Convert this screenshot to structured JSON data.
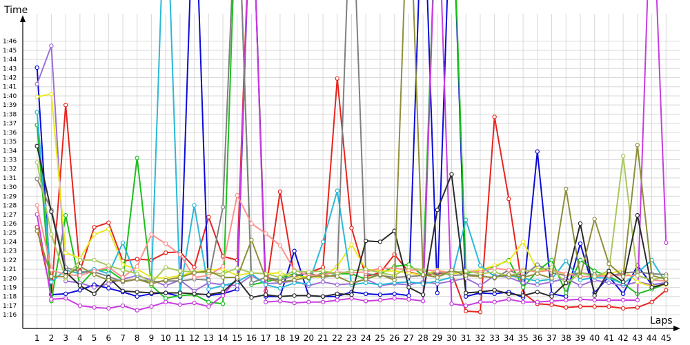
{
  "chart_data": {
    "type": "line",
    "ylabel": "Time",
    "xlabel": "Laps",
    "x": [
      1,
      2,
      3,
      4,
      5,
      6,
      7,
      8,
      9,
      10,
      11,
      12,
      13,
      14,
      15,
      16,
      17,
      18,
      19,
      20,
      21,
      22,
      23,
      24,
      25,
      26,
      27,
      28,
      29,
      30,
      31,
      32,
      33,
      34,
      35,
      36,
      37,
      38,
      39,
      40,
      41,
      42,
      43,
      44,
      45
    ],
    "xlim": [
      0,
      46
    ],
    "ylim": [
      74.5,
      109
    ],
    "ytick_values": [
      76,
      77,
      78,
      79,
      80,
      81,
      82,
      83,
      84,
      85,
      86,
      87,
      88,
      89,
      90,
      91,
      92,
      93,
      94,
      95,
      96,
      97,
      98,
      99,
      100,
      101,
      102,
      103,
      104,
      105,
      106
    ],
    "ytick_labels": [
      "1:16",
      "1:17",
      "1:18",
      "1:19",
      "1:20",
      "1:21",
      "1:22",
      "1:23",
      "1:24",
      "1:25",
      "1:26",
      "1:27",
      "1:28",
      "1:29",
      "1:30",
      "1:31",
      "1:32",
      "1:33",
      "1:34",
      "1:35",
      "1:36",
      "1:37",
      "1:38",
      "1:39",
      "1:40",
      "1:41",
      "1:42",
      "1:43",
      "1:44",
      "1:45",
      "1:46"
    ],
    "xtick_labels": [
      "1",
      "2",
      "3",
      "4",
      "5",
      "6",
      "7",
      "8",
      "9",
      "10",
      "11",
      "12",
      "13",
      "14",
      "15",
      "16",
      "17",
      "18",
      "19",
      "20",
      "21",
      "22",
      "23",
      "24",
      "25",
      "26",
      "27",
      "28",
      "29",
      "30",
      "31",
      "32",
      "33",
      "34",
      "35",
      "36",
      "37",
      "38",
      "39",
      "40",
      "41",
      "42",
      "43",
      "44",
      "45"
    ],
    "grid": true,
    "series": [
      {
        "color": "#e8231e",
        "values": [
          85.6,
          78.3,
          99.0,
          80.8,
          85.6,
          86.1,
          81.9,
          82.1,
          82.0,
          82.8,
          82.9,
          81.2,
          86.7,
          82.4,
          82.0,
          125,
          78.6,
          89.5,
          80.2,
          80.6,
          81.2,
          101.9,
          85.5,
          80.2,
          80.6,
          82.6,
          80.7,
          80.3,
          80.5,
          80.6,
          76.4,
          76.3,
          97.7,
          88.7,
          78.4,
          77.2,
          77.1,
          76.8,
          76.9,
          76.9,
          76.9,
          76.7,
          76.8,
          77.4,
          78.7
        ]
      },
      {
        "color": "#0a0ad8",
        "values": [
          103.1,
          78.2,
          78.3,
          78.7,
          79.3,
          78.9,
          78.5,
          78.0,
          78.3,
          78.4,
          78.0,
          125,
          78.1,
          78.3,
          78.8,
          125,
          78.0,
          78.0,
          83.0,
          78.1,
          78.0,
          78.0,
          78.5,
          78.3,
          78.2,
          78.3,
          78.1,
          125,
          78.4,
          125,
          78.0,
          78.4,
          78.3,
          78.5,
          77.9,
          93.9,
          78.3,
          78.0,
          83.8,
          78.4,
          80.2,
          78.3,
          81.4,
          79.3,
          79.5
        ]
      },
      {
        "color": "#1bbf1b",
        "values": [
          96.8,
          77.5,
          86.9,
          79.2,
          80.9,
          80.9,
          79.8,
          93.2,
          79.2,
          77.8,
          78.1,
          78.2,
          77.4,
          77.2,
          125,
          79.3,
          79.6,
          80.0,
          80.5,
          80.0,
          80.6,
          80.5,
          80.5,
          79.9,
          80.5,
          81.3,
          81.5,
          80.3,
          125,
          125,
          80.5,
          80.9,
          81.3,
          82.0,
          79.0,
          80.8,
          82.0,
          78.4,
          82.0,
          80.8,
          80.2,
          79.4,
          78.3,
          78.8,
          79.4
        ]
      },
      {
        "color": "#9b6fd6",
        "values": [
          101.3,
          105.5,
          79.7,
          79.5,
          79.0,
          79.4,
          79.9,
          80.3,
          79.8,
          79.2,
          79.8,
          78.6,
          79.5,
          79.3,
          79.2,
          80.3,
          79.4,
          79.5,
          79.7,
          79.2,
          79.6,
          79.3,
          79.4,
          79.9,
          79.2,
          79.4,
          79.3,
          79.6,
          79.4,
          79.7,
          80.0,
          79.2,
          80.3,
          80.1,
          79.5,
          79.3,
          79.6,
          80.0,
          79.2,
          79.8,
          79.5,
          79.2,
          79.6,
          79.3,
          79.5
        ]
      },
      {
        "color": "#c83ce0",
        "values": [
          87.0,
          77.7,
          77.8,
          77.0,
          76.8,
          76.7,
          77.0,
          76.5,
          76.9,
          77.4,
          77.1,
          77.3,
          76.9,
          78.1,
          80.0,
          125,
          77.4,
          77.5,
          77.3,
          77.4,
          77.4,
          77.6,
          77.8,
          77.5,
          77.6,
          77.8,
          77.7,
          77.5,
          125,
          77.2,
          77.0,
          77.4,
          77.4,
          77.7,
          77.4,
          77.4,
          77.5,
          77.6,
          77.7,
          77.6,
          77.6,
          77.6,
          77.6,
          125,
          83.9
        ]
      },
      {
        "color": "#e8e81e",
        "values": [
          99.9,
          100.2,
          82.8,
          82.2,
          84.8,
          85.4,
          81.5,
          81.0,
          80.1,
          80.0,
          80.3,
          80.7,
          80.9,
          81.0,
          80.3,
          80.6,
          80.5,
          80.6,
          80.1,
          80.2,
          80.1,
          81.3,
          83.7,
          81.0,
          80.8,
          80.8,
          80.6,
          80.3,
          80.9,
          80.5,
          80.7,
          80.9,
          81.4,
          81.9,
          84.0,
          80.9,
          80.9,
          80.4,
          80.6,
          80.3,
          80.5,
          80.9,
          79.6,
          79.1,
          79.3
        ]
      },
      {
        "color": "#2ab8d8",
        "values": [
          98.2,
          79.6,
          80.9,
          80.5,
          81.0,
          80.5,
          83.9,
          79.9,
          79.6,
          125,
          78.5,
          88.0,
          78.8,
          79.2,
          79.6,
          80.5,
          79.3,
          78.9,
          79.5,
          79.4,
          84.0,
          89.6,
          79.3,
          79.5,
          79.3,
          79.5,
          79.6,
          79.4,
          79.7,
          80.1,
          86.4,
          81.4,
          80.2,
          80.3,
          80.0,
          79.7,
          79.9,
          81.9,
          79.8,
          80.1,
          80.0,
          79.4,
          80.6,
          82.0,
          79.5
        ]
      },
      {
        "color": "#808080",
        "values": [
          90.9,
          87.5,
          81.2,
          80.7,
          80.7,
          80.2,
          79.6,
          79.9,
          79.6,
          79.7,
          79.7,
          79.9,
          79.8,
          87.8,
          125,
          79.5,
          80.1,
          79.8,
          80.3,
          80.6,
          80.1,
          80.4,
          125,
          80.5,
          80.3,
          80.1,
          80.2,
          80.3,
          80.7,
          80.3,
          80.4,
          80.3,
          80.0,
          80.9,
          80.2,
          81.5,
          80.6,
          80.3,
          80.6,
          80.4,
          80.2,
          80.6,
          80.7,
          80.5,
          80.4
        ]
      },
      {
        "color": "#ff9090",
        "values": [
          88.0,
          80.9,
          80.4,
          80.3,
          80.8,
          81.2,
          80.1,
          81.3,
          84.8,
          83.8,
          82.6,
          80.1,
          80.3,
          81.3,
          89.1,
          86.0,
          84.9,
          83.6,
          80.9,
          80.3,
          80.4,
          80.7,
          80.6,
          80.7,
          81.1,
          81.1,
          80.9,
          80.9,
          80.8,
          80.6,
          80.8,
          80.7,
          81.1,
          80.9,
          80.9,
          80.7,
          80.9,
          80.5,
          80.2,
          80.2,
          80.3,
          80.3,
          80.3,
          79.8,
          79.7
        ]
      },
      {
        "color": "#a7c85a",
        "values": [
          92.7,
          84.8,
          80.0,
          82.0,
          82.0,
          81.4,
          80.9,
          80.5,
          79.5,
          81.2,
          80.8,
          80.7,
          80.6,
          80.5,
          81.1,
          80.6,
          80.5,
          80.1,
          80.8,
          80.7,
          80.8,
          80.5,
          80.8,
          81.0,
          80.6,
          80.3,
          81.2,
          80.9,
          80.2,
          80.6,
          80.8,
          80.5,
          80.7,
          80.2,
          80.8,
          80.9,
          81.2,
          79.4,
          80.6,
          80.2,
          80.8,
          93.4,
          80.3,
          79.8,
          80.2
        ]
      },
      {
        "color": "#2a2a2a",
        "values": [
          94.5,
          87.3,
          80.7,
          79.2,
          78.3,
          80.1,
          78.6,
          78.5,
          78.4,
          78.4,
          78.4,
          78.3,
          78.2,
          78.5,
          79.9,
          77.9,
          78.2,
          78.0,
          78.1,
          78.1,
          78.0,
          78.3,
          78.2,
          84.1,
          84.0,
          85.2,
          79.0,
          78.2,
          87.5,
          91.4,
          78.4,
          78.5,
          78.7,
          78.3,
          78.1,
          78.5,
          78.0,
          79.5,
          86.0,
          78.1,
          80.8,
          79.6,
          86.9,
          79.0,
          79.4
        ]
      },
      {
        "color": "#8e8e3a",
        "values": [
          85.2,
          80.2,
          80.2,
          81.3,
          80.4,
          79.8,
          79.7,
          79.9,
          79.4,
          79.8,
          80.1,
          80.6,
          80.8,
          80.1,
          80.1,
          84.2,
          80.0,
          79.6,
          79.8,
          80.1,
          80.3,
          80.2,
          79.5,
          79.9,
          80.4,
          79.8,
          125,
          80.4,
          80.1,
          80.9,
          80.3,
          80.2,
          80.1,
          80.4,
          80.1,
          80.5,
          80.0,
          89.8,
          80.2,
          86.5,
          81.6,
          80.2,
          94.6,
          80.3,
          79.9
        ]
      }
    ]
  }
}
